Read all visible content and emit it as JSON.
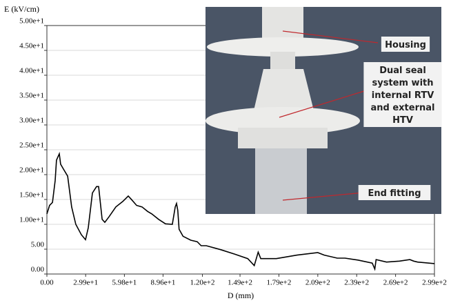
{
  "chart_data": {
    "type": "line",
    "y_label": "E (kV/cm)",
    "x_label": "D (mm)",
    "color": "#000000",
    "grid": true,
    "x": [
      0,
      2.1,
      4.3,
      6.4,
      7.4,
      9.6,
      10.6,
      12.8,
      16,
      19.1,
      22.3,
      26.6,
      29.8,
      31.9,
      35.1,
      38.3,
      39.9,
      42.6,
      44.7,
      47.9,
      53.2,
      58.5,
      62.8,
      64.9,
      69.2,
      73.4,
      77.7,
      80.9,
      86.2,
      91.5,
      96.8,
      99,
      100,
      101,
      102,
      105,
      111,
      116,
      119,
      123,
      134,
      145,
      155,
      160,
      163,
      165,
      177,
      193,
      209,
      214,
      224,
      230,
      240,
      251,
      253,
      254,
      262,
      272,
      280,
      283,
      286,
      299
    ],
    "values": [
      12.1,
      13.8,
      14.4,
      18.8,
      22.9,
      24.2,
      22.1,
      21.1,
      19.7,
      13.5,
      10,
      7.9,
      6.9,
      9.3,
      16.3,
      17.6,
      17.6,
      11,
      10.4,
      11.5,
      13.5,
      14.6,
      15.7,
      15.1,
      13.8,
      13.5,
      12.6,
      12.1,
      11,
      10.1,
      10,
      13.5,
      14.2,
      12.8,
      9,
      7.6,
      6.8,
      6.5,
      5.7,
      5.7,
      4.9,
      4,
      3.1,
      1.7,
      4.4,
      3.1,
      3.1,
      3.8,
      4.3,
      3.8,
      3.2,
      3.2,
      2.8,
      2.2,
      1,
      2.9,
      2.4,
      2.6,
      2.9,
      2.6,
      2.4,
      2.1
    ],
    "xlim": [
      0,
      299
    ],
    "ylim": [
      0,
      50
    ],
    "xticks": [
      {
        "value": 0,
        "label": "0.00"
      },
      {
        "value": 29.9,
        "label": "2.99e+1"
      },
      {
        "value": 59.8,
        "label": "5.98e+1"
      },
      {
        "value": 89.6,
        "label": "8.96e+1"
      },
      {
        "value": 120,
        "label": "1.20e+2"
      },
      {
        "value": 149,
        "label": "1.49e+2"
      },
      {
        "value": 179,
        "label": "1.79e+2"
      },
      {
        "value": 209,
        "label": "2.09e+2"
      },
      {
        "value": 239,
        "label": "2.39e+2"
      },
      {
        "value": 269,
        "label": "2.69e+2"
      },
      {
        "value": 299,
        "label": "2.99e+2"
      }
    ],
    "yticks": [
      {
        "value": 0,
        "label": "0.00"
      },
      {
        "value": 5,
        "label": "5.00"
      },
      {
        "value": 10,
        "label": "1.00e+1"
      },
      {
        "value": 15,
        "label": "1.50e+1"
      },
      {
        "value": 20,
        "label": "2.00e+1"
      },
      {
        "value": 25,
        "label": "2.50e+1"
      },
      {
        "value": 30,
        "label": "3.00e+1"
      },
      {
        "value": 35,
        "label": "3.50e+1"
      },
      {
        "value": 40,
        "label": "4.00e+1"
      },
      {
        "value": 45,
        "label": "4.50e+1"
      },
      {
        "value": 50,
        "label": "5.00e+1"
      }
    ],
    "annotations": [
      [
        "Housing"
      ],
      [
        "Dual seal",
        "system with",
        "internal RTV",
        "and external",
        "HTV"
      ],
      [
        "End fitting"
      ]
    ]
  }
}
